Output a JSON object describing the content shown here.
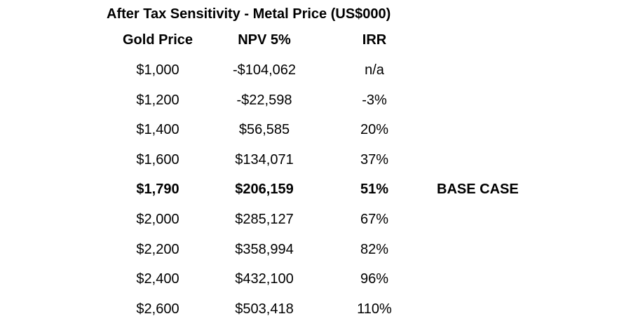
{
  "title": "After Tax Sensitivity - Metal Price (US$000)",
  "headers": {
    "gold_price": "Gold Price",
    "npv": "NPV 5%",
    "irr": "IRR"
  },
  "rows": [
    {
      "gold_price": "$1,000",
      "npv": "-$104,062",
      "irr": "n/a",
      "note": ""
    },
    {
      "gold_price": "$1,200",
      "npv": "-$22,598",
      "irr": "-3%",
      "note": ""
    },
    {
      "gold_price": "$1,400",
      "npv": "$56,585",
      "irr": "20%",
      "note": ""
    },
    {
      "gold_price": "$1,600",
      "npv": "$134,071",
      "irr": "37%",
      "note": ""
    },
    {
      "gold_price": "$1,790",
      "npv": "$206,159",
      "irr": "51%",
      "note": "BASE CASE"
    },
    {
      "gold_price": "$2,000",
      "npv": "$285,127",
      "irr": "67%",
      "note": ""
    },
    {
      "gold_price": "$2,200",
      "npv": "$358,994",
      "irr": "82%",
      "note": ""
    },
    {
      "gold_price": "$2,400",
      "npv": "$432,100",
      "irr": "96%",
      "note": ""
    },
    {
      "gold_price": "$2,600",
      "npv": "$503,418",
      "irr": "110%",
      "note": ""
    }
  ]
}
